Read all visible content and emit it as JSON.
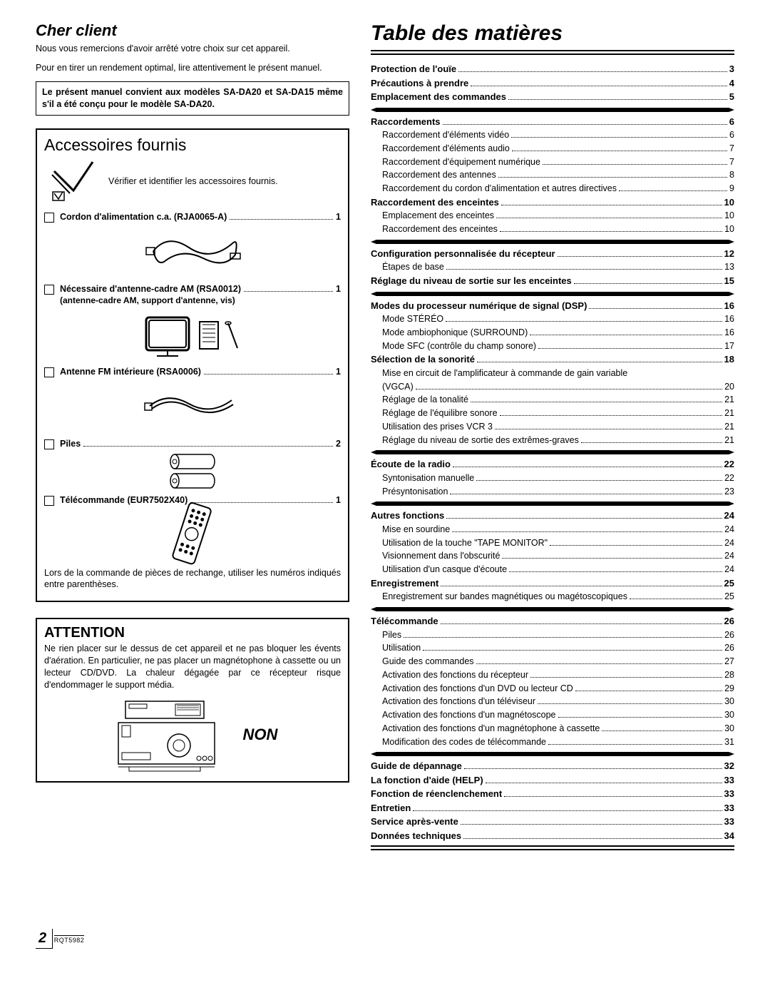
{
  "left": {
    "cher_title": "Cher client",
    "intro_p1": "Nous vous remercions d'avoir arrêté votre choix sur cet appareil.",
    "intro_p2": "Pour en tirer un rendement optimal, lire attentivement le présent manuel.",
    "note_box": "Le présent manuel convient aux modèles SA-DA20 et SA-DA15 même s'il a été conçu pour le modèle SA-DA20.",
    "accessories": {
      "title": "Accessoires fournis",
      "verify_text": "Vérifier et identifier les accessoires fournis.",
      "items": [
        {
          "label": "Cordon d'alimentation c.a. (RJA0065-A)",
          "qty": "1",
          "sublabel": ""
        },
        {
          "label": "Nécessaire d'antenne-cadre AM (RSA0012)",
          "qty": "1",
          "sublabel": "(antenne-cadre AM, support d'antenne, vis)"
        },
        {
          "label": "Antenne FM intérieure (RSA0006)",
          "qty": "1",
          "sublabel": ""
        },
        {
          "label": "Piles",
          "qty": "2",
          "sublabel": ""
        },
        {
          "label": "Télécommande (EUR7502X40)",
          "qty": "1",
          "sublabel": ""
        }
      ],
      "footnote": "Lors de la commande de pièces de rechange, utiliser les numéros indiqués entre parenthèses."
    },
    "attention": {
      "title": "ATTENTION",
      "text": "Ne rien placer sur le dessus de cet appareil et ne pas bloquer les évents d'aération. En particulier, ne pas placer un magnétophone à cassette ou un lecteur CD/DVD. La chaleur dégagée par ce récepteur risque d'endommager le support média.",
      "non": "NON"
    }
  },
  "toc": {
    "title": "Table des matières",
    "sections": [
      {
        "entries": [
          {
            "text": "Protection de l'ouïe",
            "page": "3",
            "bold": true
          },
          {
            "text": "Précautions à prendre",
            "page": "4",
            "bold": true
          },
          {
            "text": "Emplacement des commandes",
            "page": "5",
            "bold": true
          }
        ]
      },
      {
        "entries": [
          {
            "text": "Raccordements",
            "page": "6",
            "bold": true
          },
          {
            "text": "Raccordement d'éléments vidéo",
            "page": "6",
            "indent": true
          },
          {
            "text": "Raccordement d'éléments audio",
            "page": "7",
            "indent": true
          },
          {
            "text": "Raccordement d'équipement numérique",
            "page": "7",
            "indent": true
          },
          {
            "text": "Raccordement des antennes",
            "page": "8",
            "indent": true
          },
          {
            "text": "Raccordement du cordon d'alimentation et autres directives",
            "page": "9",
            "indent": true
          },
          {
            "text": "Raccordement des enceintes",
            "page": "10",
            "bold": true
          },
          {
            "text": "Emplacement des enceintes",
            "page": "10",
            "indent": true
          },
          {
            "text": "Raccordement des enceintes",
            "page": "10",
            "indent": true
          }
        ]
      },
      {
        "entries": [
          {
            "text": "Configuration personnalisée du récepteur",
            "page": "12",
            "bold": true
          },
          {
            "text": "Étapes de base",
            "page": "13",
            "indent": true
          },
          {
            "text": "Réglage du niveau de sortie sur les enceintes",
            "page": "15",
            "bold": true
          }
        ]
      },
      {
        "entries": [
          {
            "text": "Modes du processeur numérique de signal (DSP)",
            "page": "16",
            "bold": true
          },
          {
            "text": "Mode STÉRÉO",
            "page": "16",
            "indent": true
          },
          {
            "text": "Mode ambiophonique (SURROUND)",
            "page": "16",
            "indent": true
          },
          {
            "text": "Mode SFC (contrôle du champ sonore)",
            "page": "17",
            "indent": true
          },
          {
            "text": "Sélection de la sonorité",
            "page": "18",
            "bold": true
          },
          {
            "text": "Mise en circuit de l'amplificateur à commande de gain variable (VGCA)",
            "page": "20",
            "indent": true,
            "wrap": true
          },
          {
            "text": "Réglage de la tonalité",
            "page": "21",
            "indent": true
          },
          {
            "text": "Réglage de l'équilibre sonore",
            "page": "21",
            "indent": true
          },
          {
            "text": "Utilisation des prises VCR 3",
            "page": "21",
            "indent": true
          },
          {
            "text": "Réglage du niveau de sortie des extrêmes-graves",
            "page": "21",
            "indent": true
          }
        ]
      },
      {
        "entries": [
          {
            "text": "Écoute de la radio",
            "page": "22",
            "bold": true
          },
          {
            "text": "Syntonisation manuelle",
            "page": "22",
            "indent": true
          },
          {
            "text": "Présyntonisation",
            "page": "23",
            "indent": true
          }
        ]
      },
      {
        "entries": [
          {
            "text": "Autres fonctions",
            "page": "24",
            "bold": true
          },
          {
            "text": "Mise en sourdine",
            "page": "24",
            "indent": true
          },
          {
            "text": "Utilisation de la touche \"TAPE MONITOR\"",
            "page": "24",
            "indent": true
          },
          {
            "text": "Visionnement dans l'obscurité",
            "page": "24",
            "indent": true
          },
          {
            "text": "Utilisation d'un casque d'écoute",
            "page": "24",
            "indent": true
          },
          {
            "text": "Enregistrement",
            "page": "25",
            "bold": true
          },
          {
            "text": "Enregistrement sur bandes magnétiques ou magétoscopiques",
            "page": "25",
            "indent": true
          }
        ]
      },
      {
        "entries": [
          {
            "text": "Télécommande",
            "page": "26",
            "bold": true
          },
          {
            "text": "Piles",
            "page": "26",
            "indent": true
          },
          {
            "text": "Utilisation",
            "page": "26",
            "indent": true
          },
          {
            "text": "Guide des commandes",
            "page": "27",
            "indent": true
          },
          {
            "text": "Activation des fonctions du récepteur",
            "page": "28",
            "indent": true
          },
          {
            "text": "Activation des fonctions d'un DVD ou lecteur CD",
            "page": "29",
            "indent": true
          },
          {
            "text": "Activation des fonctions d'un téléviseur",
            "page": "30",
            "indent": true
          },
          {
            "text": "Activation des fonctions d'un magnétoscope",
            "page": "30",
            "indent": true
          },
          {
            "text": "Activation des fonctions d'un magnétophone à cassette",
            "page": "30",
            "indent": true
          },
          {
            "text": "Modification des codes de télécommande",
            "page": "31",
            "indent": true
          }
        ]
      },
      {
        "entries": [
          {
            "text": "Guide de dépannage",
            "page": "32",
            "bold": true
          },
          {
            "text": "La fonction d'aide (HELP)",
            "page": "33",
            "bold": true
          },
          {
            "text": "Fonction de réenclenchement",
            "page": "33",
            "bold": true
          },
          {
            "text": "Entretien",
            "page": "33",
            "bold": true
          },
          {
            "text": "Service après-vente",
            "page": "33",
            "bold": true
          },
          {
            "text": "Données techniques",
            "page": "34",
            "bold": true
          }
        ]
      }
    ]
  },
  "footer": {
    "page_number": "2",
    "rqt": "RQT5982"
  },
  "colors": {
    "text": "#000000",
    "background": "#ffffff",
    "border": "#000000"
  }
}
